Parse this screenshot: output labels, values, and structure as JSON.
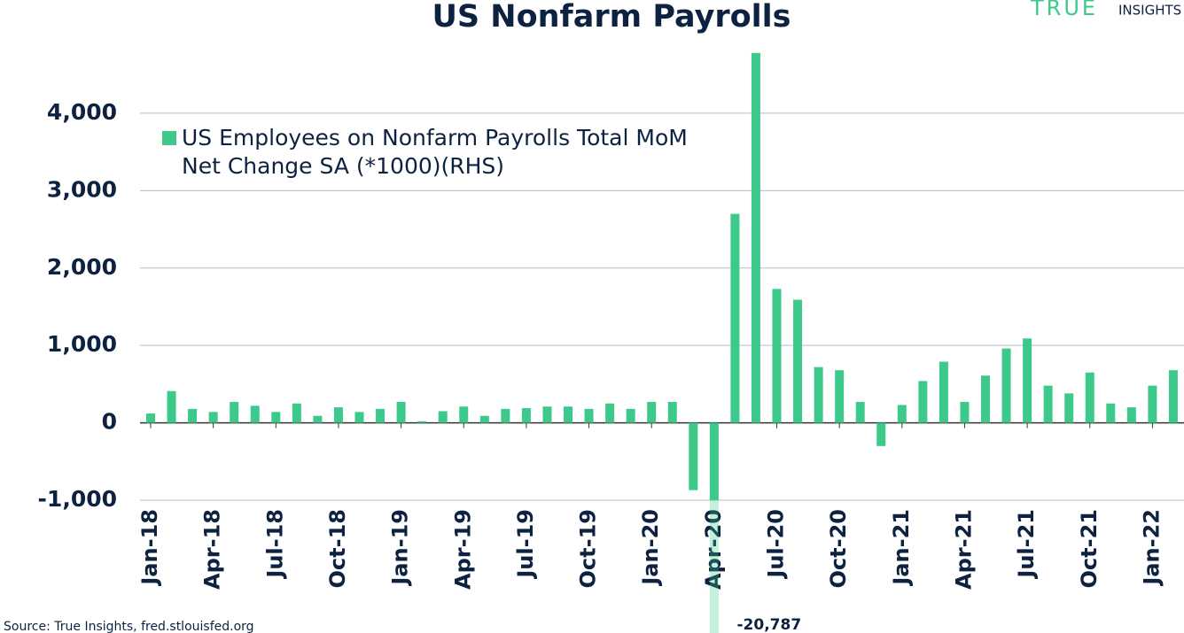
{
  "chart_data": {
    "type": "bar",
    "title": "US Nonfarm Payrolls",
    "logo": [
      "TRUE",
      "INSIGHTS"
    ],
    "source": "Source: True Insights, fred.stlouisfed.org",
    "categories": [
      "Jan-18",
      null,
      null,
      "Apr-18",
      null,
      null,
      "Jul-18",
      null,
      null,
      "Oct-18",
      null,
      null,
      "Jan-19",
      null,
      null,
      "Apr-19",
      null,
      null,
      "Jul-19",
      null,
      null,
      "Oct-19",
      null,
      null,
      "Jan-20",
      null,
      null,
      "Apr-20",
      null,
      null,
      "Jul-20",
      null,
      null,
      "Oct-20",
      null,
      null,
      "Jan-21",
      null,
      null,
      "Apr-21",
      null,
      null,
      "Jul-21",
      null,
      null,
      "Oct-21",
      null,
      null,
      "Jan-22",
      null
    ],
    "series": [
      {
        "name": "US Employees on Nonfarm Payrolls Total MoM Net Change SA (*1000)(RHS)",
        "color": "#3cc98a",
        "values": [
          120,
          410,
          180,
          140,
          270,
          220,
          140,
          250,
          90,
          200,
          140,
          180,
          270,
          20,
          150,
          210,
          90,
          180,
          190,
          210,
          210,
          180,
          250,
          180,
          270,
          270,
          -870,
          -20787,
          2700,
          4780,
          1730,
          1590,
          720,
          680,
          270,
          -300,
          230,
          540,
          790,
          270,
          610,
          960,
          1090,
          480,
          380,
          650,
          250,
          200,
          480,
          680
        ],
        "value_labels": [
          null,
          null,
          null,
          null,
          null,
          null,
          null,
          null,
          null,
          null,
          null,
          null,
          null,
          null,
          null,
          null,
          null,
          null,
          null,
          null,
          null,
          null,
          null,
          null,
          null,
          null,
          null,
          "-20,787",
          null,
          null,
          null,
          null,
          null,
          null,
          null,
          null,
          null,
          null,
          null,
          null,
          null,
          null,
          null,
          null,
          null,
          null,
          null,
          null,
          null,
          null
        ]
      }
    ],
    "ylim": [
      -1000,
      4800
    ],
    "yticks": [
      {
        "value": -1000,
        "label": "-1,000"
      },
      0,
      {
        "value": 1000,
        "label": "1,000"
      },
      {
        "value": 2000,
        "label": "2,000"
      },
      {
        "value": 3000,
        "label": "3,000"
      },
      {
        "value": 4000,
        "label": "4,000"
      }
    ],
    "grid": true
  }
}
